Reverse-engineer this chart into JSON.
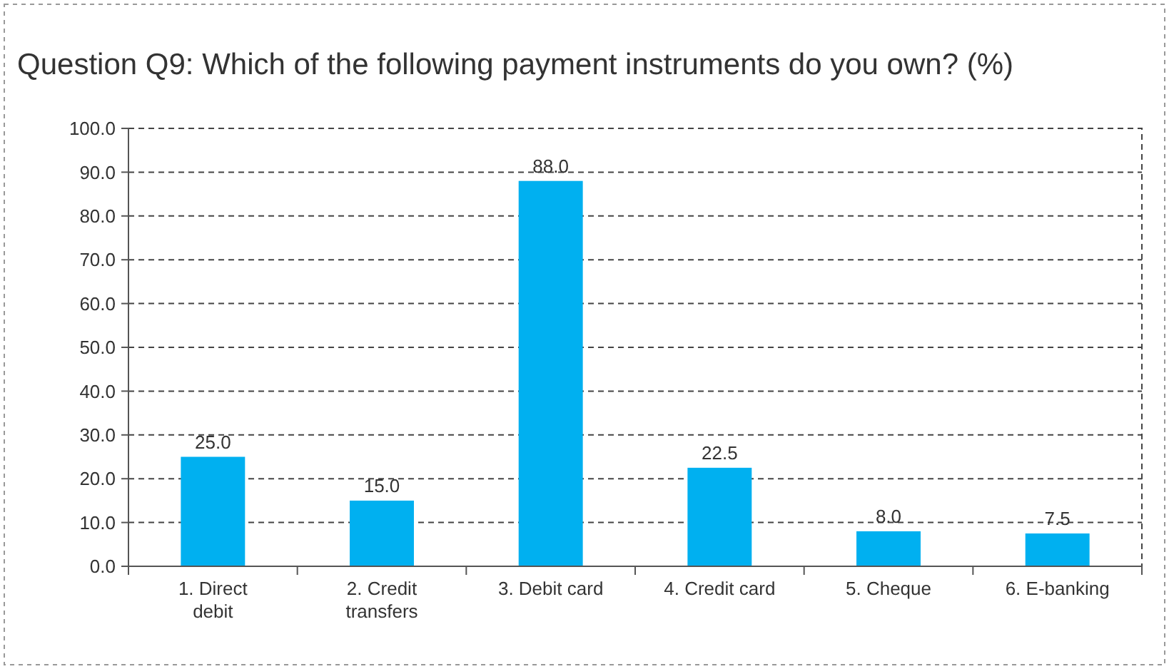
{
  "chart_data": {
    "type": "bar",
    "title": "Question Q9: Which of the following payment instruments do you own? (%)",
    "categories": [
      "1. Direct debit",
      "2. Credit transfers",
      "3. Debit card",
      "4. Credit card",
      "5. Cheque",
      "6. E-banking"
    ],
    "values": [
      25.0,
      15.0,
      88.0,
      22.5,
      8.0,
      7.5
    ],
    "value_labels": [
      "25.0",
      "15.0",
      "88.0",
      "22.5",
      "8.0",
      "7.5"
    ],
    "color": "#00b0f0",
    "ylim": [
      0,
      100
    ],
    "yticks": [
      {
        "value": 0,
        "label": "0.0"
      },
      {
        "value": 10,
        "label": "10.0"
      },
      {
        "value": 20,
        "label": "20.0"
      },
      {
        "value": 30,
        "label": "30.0"
      },
      {
        "value": 40,
        "label": "40.0"
      },
      {
        "value": 50,
        "label": "50.0"
      },
      {
        "value": 60,
        "label": "60.0"
      },
      {
        "value": 70,
        "label": "70.0"
      },
      {
        "value": 80,
        "label": "80.0"
      },
      {
        "value": 90,
        "label": "90.0"
      },
      {
        "value": 100,
        "label": "100.0"
      }
    ],
    "grid": "y"
  }
}
